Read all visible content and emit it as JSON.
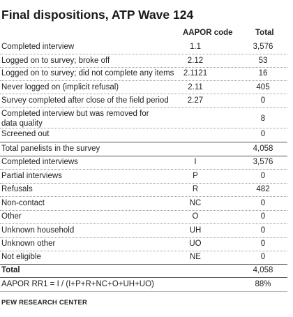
{
  "title": "Final dispositions, ATP Wave 124",
  "headers": {
    "code": "AAPOR code",
    "total": "Total"
  },
  "rows_a": [
    {
      "label": "Completed interview",
      "code": "1.1",
      "total": "3,576"
    },
    {
      "label": "Logged on to survey; broke off",
      "code": "2.12",
      "total": "53"
    },
    {
      "label": "Logged on to survey; did not complete any items",
      "code": "2.1121",
      "total": "16"
    },
    {
      "label": "Never logged on (implicit refusal)",
      "code": "2.11",
      "total": "405"
    },
    {
      "label": "Survey completed after close of the field period",
      "code": "2.27",
      "total": "0"
    },
    {
      "label": "Completed interview but was removed for data quality",
      "code": "",
      "total": "8"
    },
    {
      "label": "Screened out",
      "code": "",
      "total": "0"
    }
  ],
  "panelists_total": {
    "label": "Total panelists in the survey",
    "total": "4,058"
  },
  "rows_b": [
    {
      "label": "Completed interviews",
      "code": "I",
      "total": "3,576"
    },
    {
      "label": "Partial interviews",
      "code": "P",
      "total": "0"
    },
    {
      "label": "Refusals",
      "code": "R",
      "total": "482"
    },
    {
      "label": "Non-contact",
      "code": "NC",
      "total": "0"
    },
    {
      "label": "Other",
      "code": "O",
      "total": "0"
    },
    {
      "label": "Unknown household",
      "code": "UH",
      "total": "0"
    },
    {
      "label": "Unknown other",
      "code": "UO",
      "total": "0"
    },
    {
      "label": "Not eligible",
      "code": "NE",
      "total": "0"
    }
  ],
  "grand_total": {
    "label": "Total",
    "total": "4,058"
  },
  "rr1": {
    "label": "AAPOR RR1 = I / (I+P+R+NC+O+UH+UO)",
    "total": "88%"
  },
  "source": "PEW RESEARCH CENTER"
}
